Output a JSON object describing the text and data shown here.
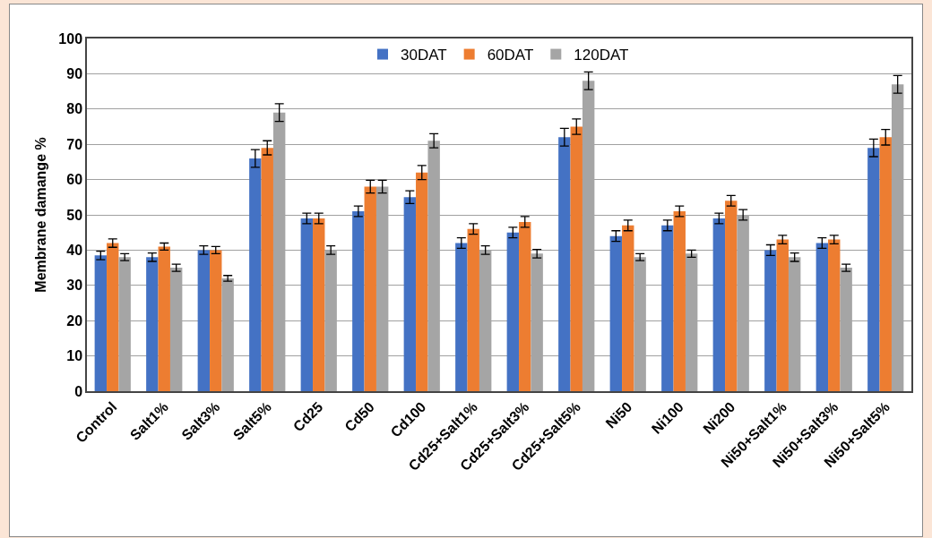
{
  "chart_data": {
    "type": "bar",
    "ylabel": "Membrane damange %",
    "categories": [
      "Control",
      "Salt1%",
      "Salt3%",
      "Salt5%",
      "Cd25",
      "Cd50",
      "Cd100",
      "Cd25+Salt1%",
      "Cd25+Salt3%",
      "Cd25+Salt5%",
      "Ni50",
      "Ni100",
      "Ni200",
      "Ni50+Salt1%",
      "Ni50+Salt3%",
      "Ni50+Salt5%"
    ],
    "series": [
      {
        "name": "30DAT",
        "color": "#4472c4",
        "values": [
          38.5,
          38,
          40,
          66,
          49,
          51,
          55,
          42,
          45,
          72,
          44,
          47,
          49,
          40,
          42,
          69
        ],
        "errors": [
          1.2,
          1.2,
          1.2,
          2.5,
          1.5,
          1.5,
          1.8,
          1.5,
          1.5,
          2.5,
          1.5,
          1.5,
          1.5,
          1.5,
          1.5,
          2.5
        ]
      },
      {
        "name": "60DAT",
        "color": "#ed7d31",
        "values": [
          42,
          41,
          40,
          69,
          49,
          58,
          62,
          46,
          48,
          75,
          47,
          51,
          54,
          43,
          43,
          72
        ],
        "errors": [
          1.2,
          1,
          1,
          2,
          1.5,
          1.8,
          2,
          1.5,
          1.5,
          2.2,
          1.5,
          1.5,
          1.5,
          1.2,
          1.2,
          2.2
        ]
      },
      {
        "name": "120DAT",
        "color": "#a5a5a5",
        "values": [
          38,
          35,
          32,
          79,
          40,
          58,
          71,
          40,
          39,
          88,
          38,
          39,
          50,
          38,
          35,
          87
        ],
        "errors": [
          1,
          1,
          0.8,
          2.5,
          1.2,
          1.8,
          2,
          1.2,
          1.2,
          2.5,
          1,
          1,
          1.5,
          1.2,
          1,
          2.5
        ]
      }
    ],
    "ylim": [
      0,
      100
    ],
    "yticks": [
      0,
      10,
      20,
      30,
      40,
      50,
      60,
      70,
      80,
      90,
      100
    ],
    "grid": "y",
    "legend": "top"
  }
}
